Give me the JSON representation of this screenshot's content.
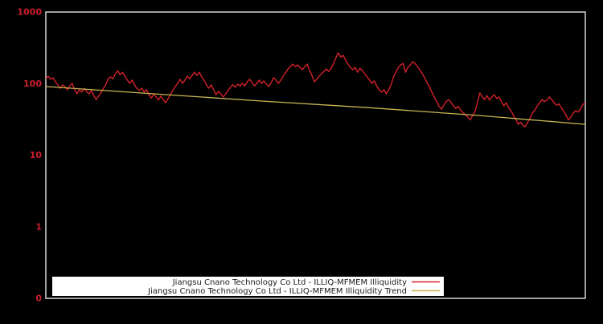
{
  "colors": {
    "background": "#000000",
    "plot_border": "#d4d4d4",
    "tick_label": "#cc1f2e",
    "series_line": "#d22128",
    "trend_line": "#c8b553",
    "legend_background": "#ffffff",
    "legend_text": "#1a1a1a"
  },
  "chart_data": {
    "type": "line",
    "title": "",
    "xlabel": "",
    "ylabel": "",
    "x_axis": {
      "tick_labels": []
    },
    "y_axis": {
      "scale": "log",
      "tick_labels": [
        "1000",
        "100",
        "10",
        "1",
        "0"
      ],
      "tick_values": [
        1000,
        100,
        10,
        1,
        0.1
      ],
      "top_value": 1000,
      "bottom_value": 0.1,
      "grid": false
    },
    "legend": {
      "position": "bottom-center",
      "background": "#ffffff"
    },
    "series": [
      {
        "name": "Jiangsu Cnano Technology Co Ltd - ILLIQ-MFMEM Illiquidity",
        "color": "#d22128",
        "values": [
          117,
          127,
          115,
          121,
          106,
          96,
          86,
          96,
          91,
          82,
          93,
          101,
          82,
          72,
          82,
          76,
          86,
          78,
          72,
          80,
          68,
          60,
          67,
          74,
          86,
          96,
          117,
          124,
          117,
          137,
          152,
          133,
          144,
          127,
          112,
          101,
          112,
          96,
          86,
          80,
          86,
          76,
          82,
          70,
          63,
          70,
          65,
          59,
          67,
          60,
          54,
          62,
          70,
          82,
          91,
          101,
          115,
          101,
          112,
          127,
          117,
          130,
          144,
          130,
          144,
          124,
          112,
          96,
          86,
          96,
          82,
          70,
          78,
          72,
          65,
          72,
          80,
          89,
          96,
          89,
          98,
          93,
          101,
          93,
          106,
          115,
          103,
          93,
          101,
          112,
          101,
          109,
          98,
          91,
          103,
          121,
          112,
          101,
          112,
          127,
          141,
          160,
          173,
          187,
          173,
          182,
          169,
          156,
          173,
          187,
          152,
          130,
          106,
          115,
          127,
          137,
          148,
          160,
          148,
          164,
          192,
          230,
          268,
          236,
          248,
          213,
          187,
          169,
          156,
          169,
          144,
          164,
          152,
          137,
          124,
          112,
          101,
          109,
          93,
          82,
          76,
          82,
          72,
          82,
          96,
          124,
          144,
          169,
          182,
          192,
          144,
          169,
          182,
          202,
          192,
          173,
          156,
          137,
          121,
          103,
          89,
          76,
          65,
          56,
          48,
          44,
          50,
          56,
          60,
          54,
          49,
          45,
          48,
          43,
          39,
          37,
          34,
          31,
          36,
          41,
          54,
          74,
          65,
          60,
          68,
          59,
          65,
          70,
          62,
          65,
          56,
          49,
          54,
          46,
          42,
          36,
          32,
          27,
          29,
          26,
          25,
          29,
          33,
          39,
          43,
          49,
          54,
          60,
          56,
          59,
          65,
          60,
          54,
          50,
          52,
          46,
          41,
          36,
          31,
          34,
          39,
          42,
          40,
          44,
          51,
          54
        ]
      },
      {
        "name": "Jiangsu Cnano Technology Co Ltd - ILLIQ-MFMEM Illiquidity Trend",
        "color": "#c8b553",
        "values": [
          91,
          72,
          57,
          46,
          36,
          27
        ]
      }
    ]
  }
}
